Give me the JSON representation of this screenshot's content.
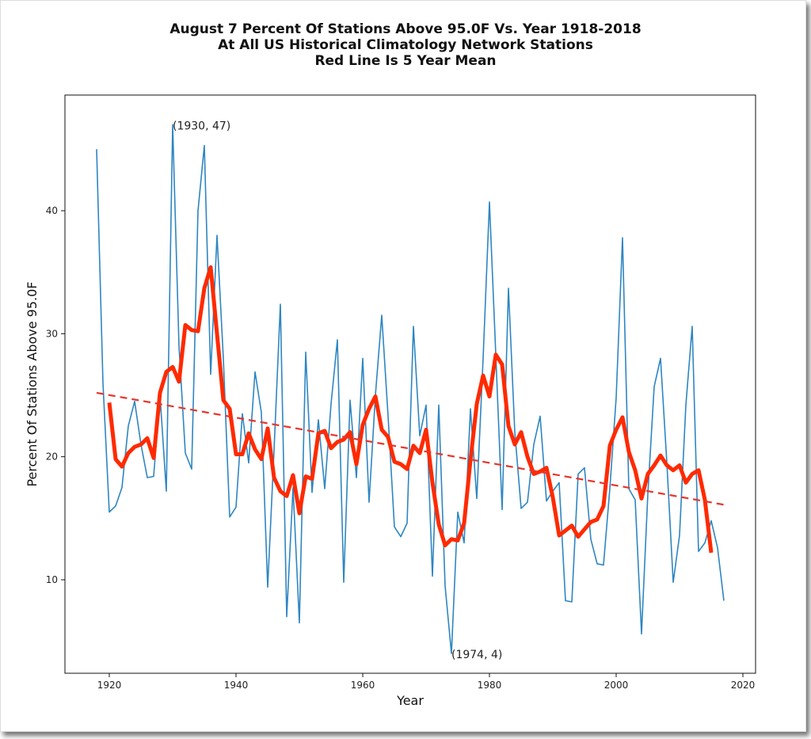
{
  "chart_data": {
    "type": "line",
    "title": [
      "August 7 Percent Of Stations Above 95.0F Vs. Year 1918-2018",
      "At All US Historical Climatology Network Stations",
      "Red Line Is 5 Year Mean"
    ],
    "xlabel": "Year",
    "ylabel": "Percent Of Stations Above 95.0F",
    "xlim": [
      1913,
      2022
    ],
    "ylim": [
      2.4,
      49.4
    ],
    "xticks": [
      1920,
      1940,
      1960,
      1980,
      2000,
      2020
    ],
    "yticks": [
      10,
      20,
      30,
      40
    ],
    "grid": false,
    "annotations": [
      {
        "x": 1930,
        "y": 47,
        "text": "(1930, 47)"
      },
      {
        "x": 1974,
        "y": 4,
        "text": "(1974, 4)"
      }
    ],
    "series": [
      {
        "name": "Percent of stations above 95.0F",
        "color": "#2e86c1",
        "x": [
          1918,
          1919,
          1920,
          1921,
          1922,
          1923,
          1924,
          1925,
          1926,
          1927,
          1928,
          1929,
          1930,
          1931,
          1932,
          1933,
          1934,
          1935,
          1936,
          1937,
          1938,
          1939,
          1940,
          1941,
          1942,
          1943,
          1944,
          1945,
          1946,
          1947,
          1948,
          1949,
          1950,
          1951,
          1952,
          1953,
          1954,
          1955,
          1956,
          1957,
          1958,
          1959,
          1960,
          1961,
          1962,
          1963,
          1964,
          1965,
          1966,
          1967,
          1968,
          1969,
          1970,
          1971,
          1972,
          1973,
          1974,
          1975,
          1976,
          1977,
          1978,
          1979,
          1980,
          1981,
          1982,
          1983,
          1984,
          1985,
          1986,
          1987,
          1988,
          1989,
          1990,
          1991,
          1992,
          1993,
          1994,
          1995,
          1996,
          1997,
          1998,
          1999,
          2000,
          2001,
          2002,
          2003,
          2004,
          2005,
          2006,
          2007,
          2008,
          2009,
          2010,
          2011,
          2012,
          2013,
          2014,
          2015,
          2016,
          2017
        ],
        "values": [
          45,
          26,
          15.5,
          16,
          17.5,
          22.5,
          24.5,
          21,
          18.3,
          18.4,
          25,
          17.2,
          47,
          29,
          20.3,
          19,
          40,
          45.3,
          26.7,
          38,
          28,
          15.1,
          15.9,
          23.5,
          19.5,
          26.9,
          23.6,
          9.4,
          20.5,
          32.4,
          7,
          17.5,
          6.5,
          28.5,
          17.1,
          23,
          17.4,
          24.3,
          29.5,
          9.8,
          24.6,
          18.3,
          28,
          16.3,
          25,
          31.5,
          23.3,
          14.3,
          13.5,
          14.6,
          30.6,
          21.7,
          24.2,
          10.3,
          24.2,
          9.5,
          4,
          15.5,
          13,
          23.9,
          16.6,
          28,
          40.7,
          28.3,
          15.7,
          33.7,
          22,
          15.8,
          16.3,
          21,
          23.3,
          16.4,
          17.2,
          17.9,
          8.3,
          8.2,
          18.6,
          19.1,
          13.3,
          11.3,
          11.2,
          17.4,
          24.8,
          37.8,
          17.4,
          16.5,
          5.6,
          17,
          25.7,
          28,
          19.5,
          9.8,
          13.6,
          24.2,
          30.6,
          12.3,
          13,
          14.8,
          12.6,
          8.3
        ]
      },
      {
        "name": "5 Year Mean",
        "color": "#ff2a00",
        "x": [
          1920,
          1921,
          1922,
          1923,
          1924,
          1925,
          1926,
          1927,
          1928,
          1929,
          1930,
          1931,
          1932,
          1933,
          1934,
          1935,
          1936,
          1937,
          1938,
          1939,
          1940,
          1941,
          1942,
          1943,
          1944,
          1945,
          1946,
          1947,
          1948,
          1949,
          1950,
          1951,
          1952,
          1953,
          1954,
          1955,
          1956,
          1957,
          1958,
          1959,
          1960,
          1961,
          1962,
          1963,
          1964,
          1965,
          1966,
          1967,
          1968,
          1969,
          1970,
          1971,
          1972,
          1973,
          1974,
          1975,
          1976,
          1977,
          1978,
          1979,
          1980,
          1981,
          1982,
          1983,
          1984,
          1985,
          1986,
          1987,
          1988,
          1989,
          1990,
          1991,
          1992,
          1993,
          1994,
          1995,
          1996,
          1997,
          1998,
          1999,
          2000,
          2001,
          2002,
          2003,
          2004,
          2005,
          2006,
          2007,
          2008,
          2009,
          2010,
          2011,
          2012,
          2013,
          2014,
          2015
        ],
        "values": [
          24.4,
          19.8,
          19.2,
          20.3,
          20.8,
          21,
          21.5,
          19.9,
          25.2,
          26.9,
          27.3,
          26.1,
          30.7,
          30.3,
          30.2,
          33.7,
          35.4,
          30,
          24.6,
          23.9,
          20.2,
          20.2,
          21.9,
          20.6,
          19.8,
          22.3,
          18.3,
          17.2,
          16.8,
          18.5,
          15.4,
          18.4,
          18.2,
          21.9,
          22.1,
          20.7,
          21.2,
          21.4,
          22,
          19.4,
          22.6,
          23.9,
          24.9,
          22.2,
          21.6,
          19.6,
          19.4,
          19,
          20.9,
          20.3,
          22.2,
          17.9,
          14.5,
          12.8,
          13.3,
          13.2,
          14.6,
          19.7,
          24.3,
          26.6,
          24.9,
          28.3,
          27.5,
          22.5,
          21,
          22,
          20,
          18.6,
          18.8,
          19.1,
          16.7,
          13.6,
          14,
          14.4,
          13.5,
          14.1,
          14.7,
          14.9,
          16,
          20.9,
          22.2,
          23.2,
          20.4,
          18.9,
          16.6,
          18.6,
          19.3,
          20.1,
          19.3,
          18.9,
          19.3,
          17.9,
          18.6,
          18.9,
          16.5,
          12.2
        ]
      },
      {
        "name": "Linear trend",
        "color": "#e8352a",
        "style": "dashed",
        "x": [
          1918,
          2017
        ],
        "values": [
          25.2,
          16.1
        ]
      }
    ]
  }
}
